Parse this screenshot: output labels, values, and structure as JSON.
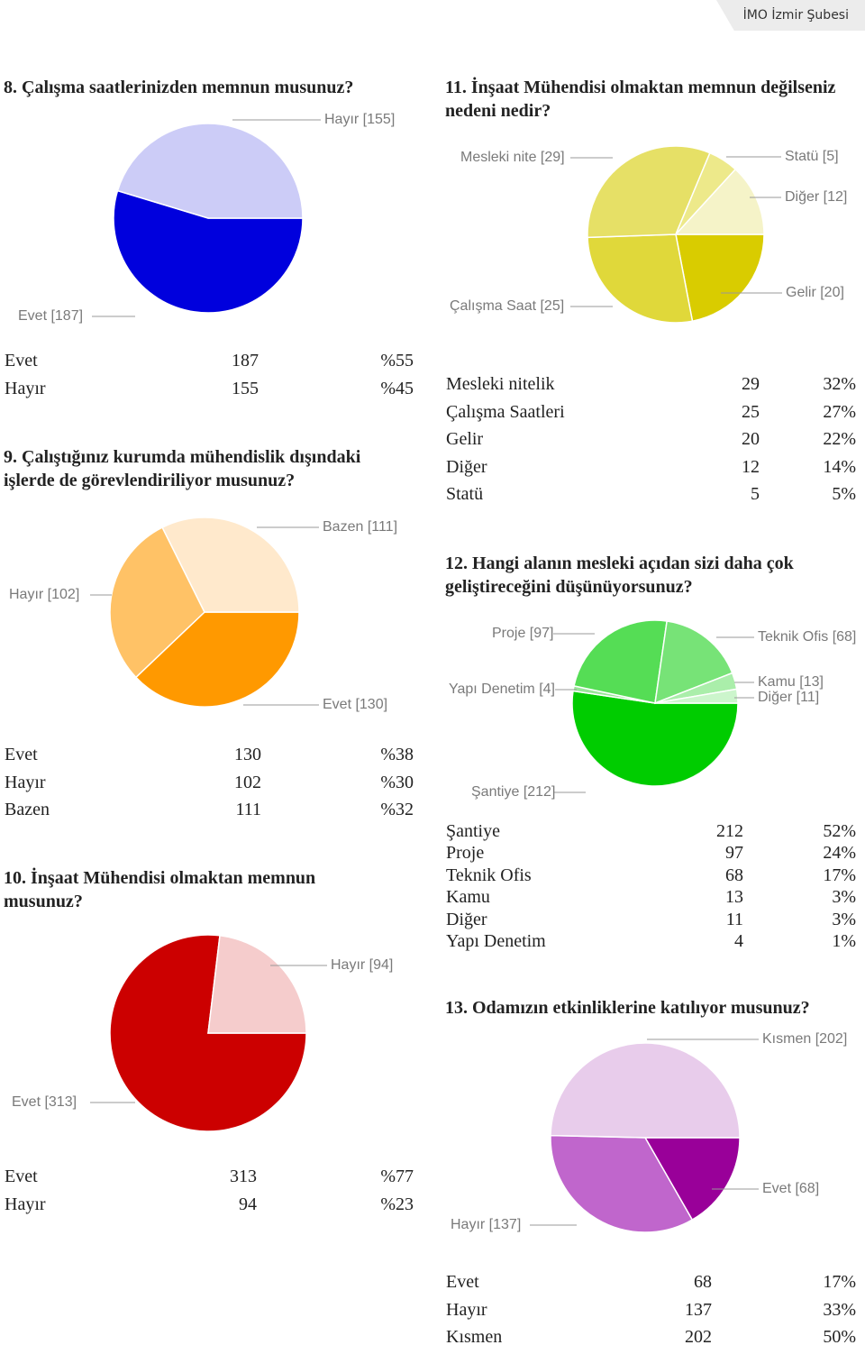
{
  "header": {
    "text": "İMO İzmir Şubesi"
  },
  "chart_data": [
    {
      "type": "pie",
      "title": "8. Çalışma saatlerinizden memnun musunuz?",
      "categories": [
        "Evet",
        "Hayır"
      ],
      "values": [
        187,
        155
      ],
      "value_labels": [
        "Evet [187]",
        "Hayır [155]"
      ],
      "shares": [
        "%55",
        "%45"
      ],
      "colors": [
        "#0000dd",
        "#ccccf7"
      ]
    },
    {
      "type": "pie",
      "title": "9. Çalıştığınız kurumda mühendislik dışındaki işlerde de görevlendiriliyor musunuz?",
      "categories": [
        "Evet",
        "Hayır",
        "Bazen"
      ],
      "values": [
        130,
        102,
        111
      ],
      "value_labels": [
        "Evet [130]",
        "Hayır [102]",
        "Bazen [111]"
      ],
      "shares": [
        "%38",
        "%30",
        "%32"
      ],
      "colors": [
        "#ff9900",
        "#ffc266",
        "#ffe9cc"
      ]
    },
    {
      "type": "pie",
      "title": "10. İnşaat Mühendisi olmaktan memnun musunuz?",
      "categories": [
        "Evet",
        "Hayır"
      ],
      "values": [
        313,
        94
      ],
      "value_labels": [
        "Evet [313]",
        "Hayır [94]"
      ],
      "shares": [
        "%77",
        "%23"
      ],
      "colors": [
        "#cc0000",
        "#f5cccc"
      ]
    },
    {
      "type": "pie",
      "title": "11. İnşaat Mühendisi olmaktan memnun değilseniz nedeni nedir?",
      "categories": [
        "Mesleki nitelik",
        "Çalışma Saatleri",
        "Gelir",
        "Diğer",
        "Statü"
      ],
      "values": [
        29,
        25,
        20,
        12,
        5
      ],
      "value_labels": [
        "Mesleki nite [29]",
        "Çalışma Saat [25]",
        "Gelir [20]",
        "Diğer [12]",
        "Statü [5]"
      ],
      "shares": [
        "32%",
        "27%",
        "22%",
        "14%",
        "5%"
      ],
      "colors": [
        "#e6e066",
        "#e0d83a",
        "#d9cc00",
        "#f5f3c8",
        "#ede98a"
      ]
    },
    {
      "type": "pie",
      "title": "12. Hangi alanın mesleki açıdan sizi daha çok geliştireceğini düşünüyorsunuz?",
      "categories": [
        "Şantiye",
        "Proje",
        "Teknik Ofis",
        "Kamu",
        "Diğer",
        "Yapı Denetim"
      ],
      "values": [
        212,
        97,
        68,
        13,
        11,
        4
      ],
      "value_labels": [
        "Şantiye [212]",
        "Proje [97]",
        "Teknik Ofis [68]",
        "Kamu [13]",
        "Diğer [11]",
        "Yapı Denetim [4]"
      ],
      "shares": [
        "52%",
        "24%",
        "17%",
        "3%",
        "3%",
        "1%"
      ],
      "colors": [
        "#00cc00",
        "#55dd55",
        "#77e377",
        "#aaeeaa",
        "#ccf5cc",
        "#99e699"
      ]
    },
    {
      "type": "pie",
      "title": "13. Odamızın etkinliklerine katılıyor musunuz?",
      "categories": [
        "Evet",
        "Hayır",
        "Kısmen"
      ],
      "values": [
        68,
        137,
        202
      ],
      "value_labels": [
        "Evet [68]",
        "Hayır [137]",
        "Kısmen [202]"
      ],
      "shares": [
        "17%",
        "33%",
        "50%"
      ],
      "colors": [
        "#990099",
        "#c066cc",
        "#e8cceb"
      ]
    }
  ]
}
